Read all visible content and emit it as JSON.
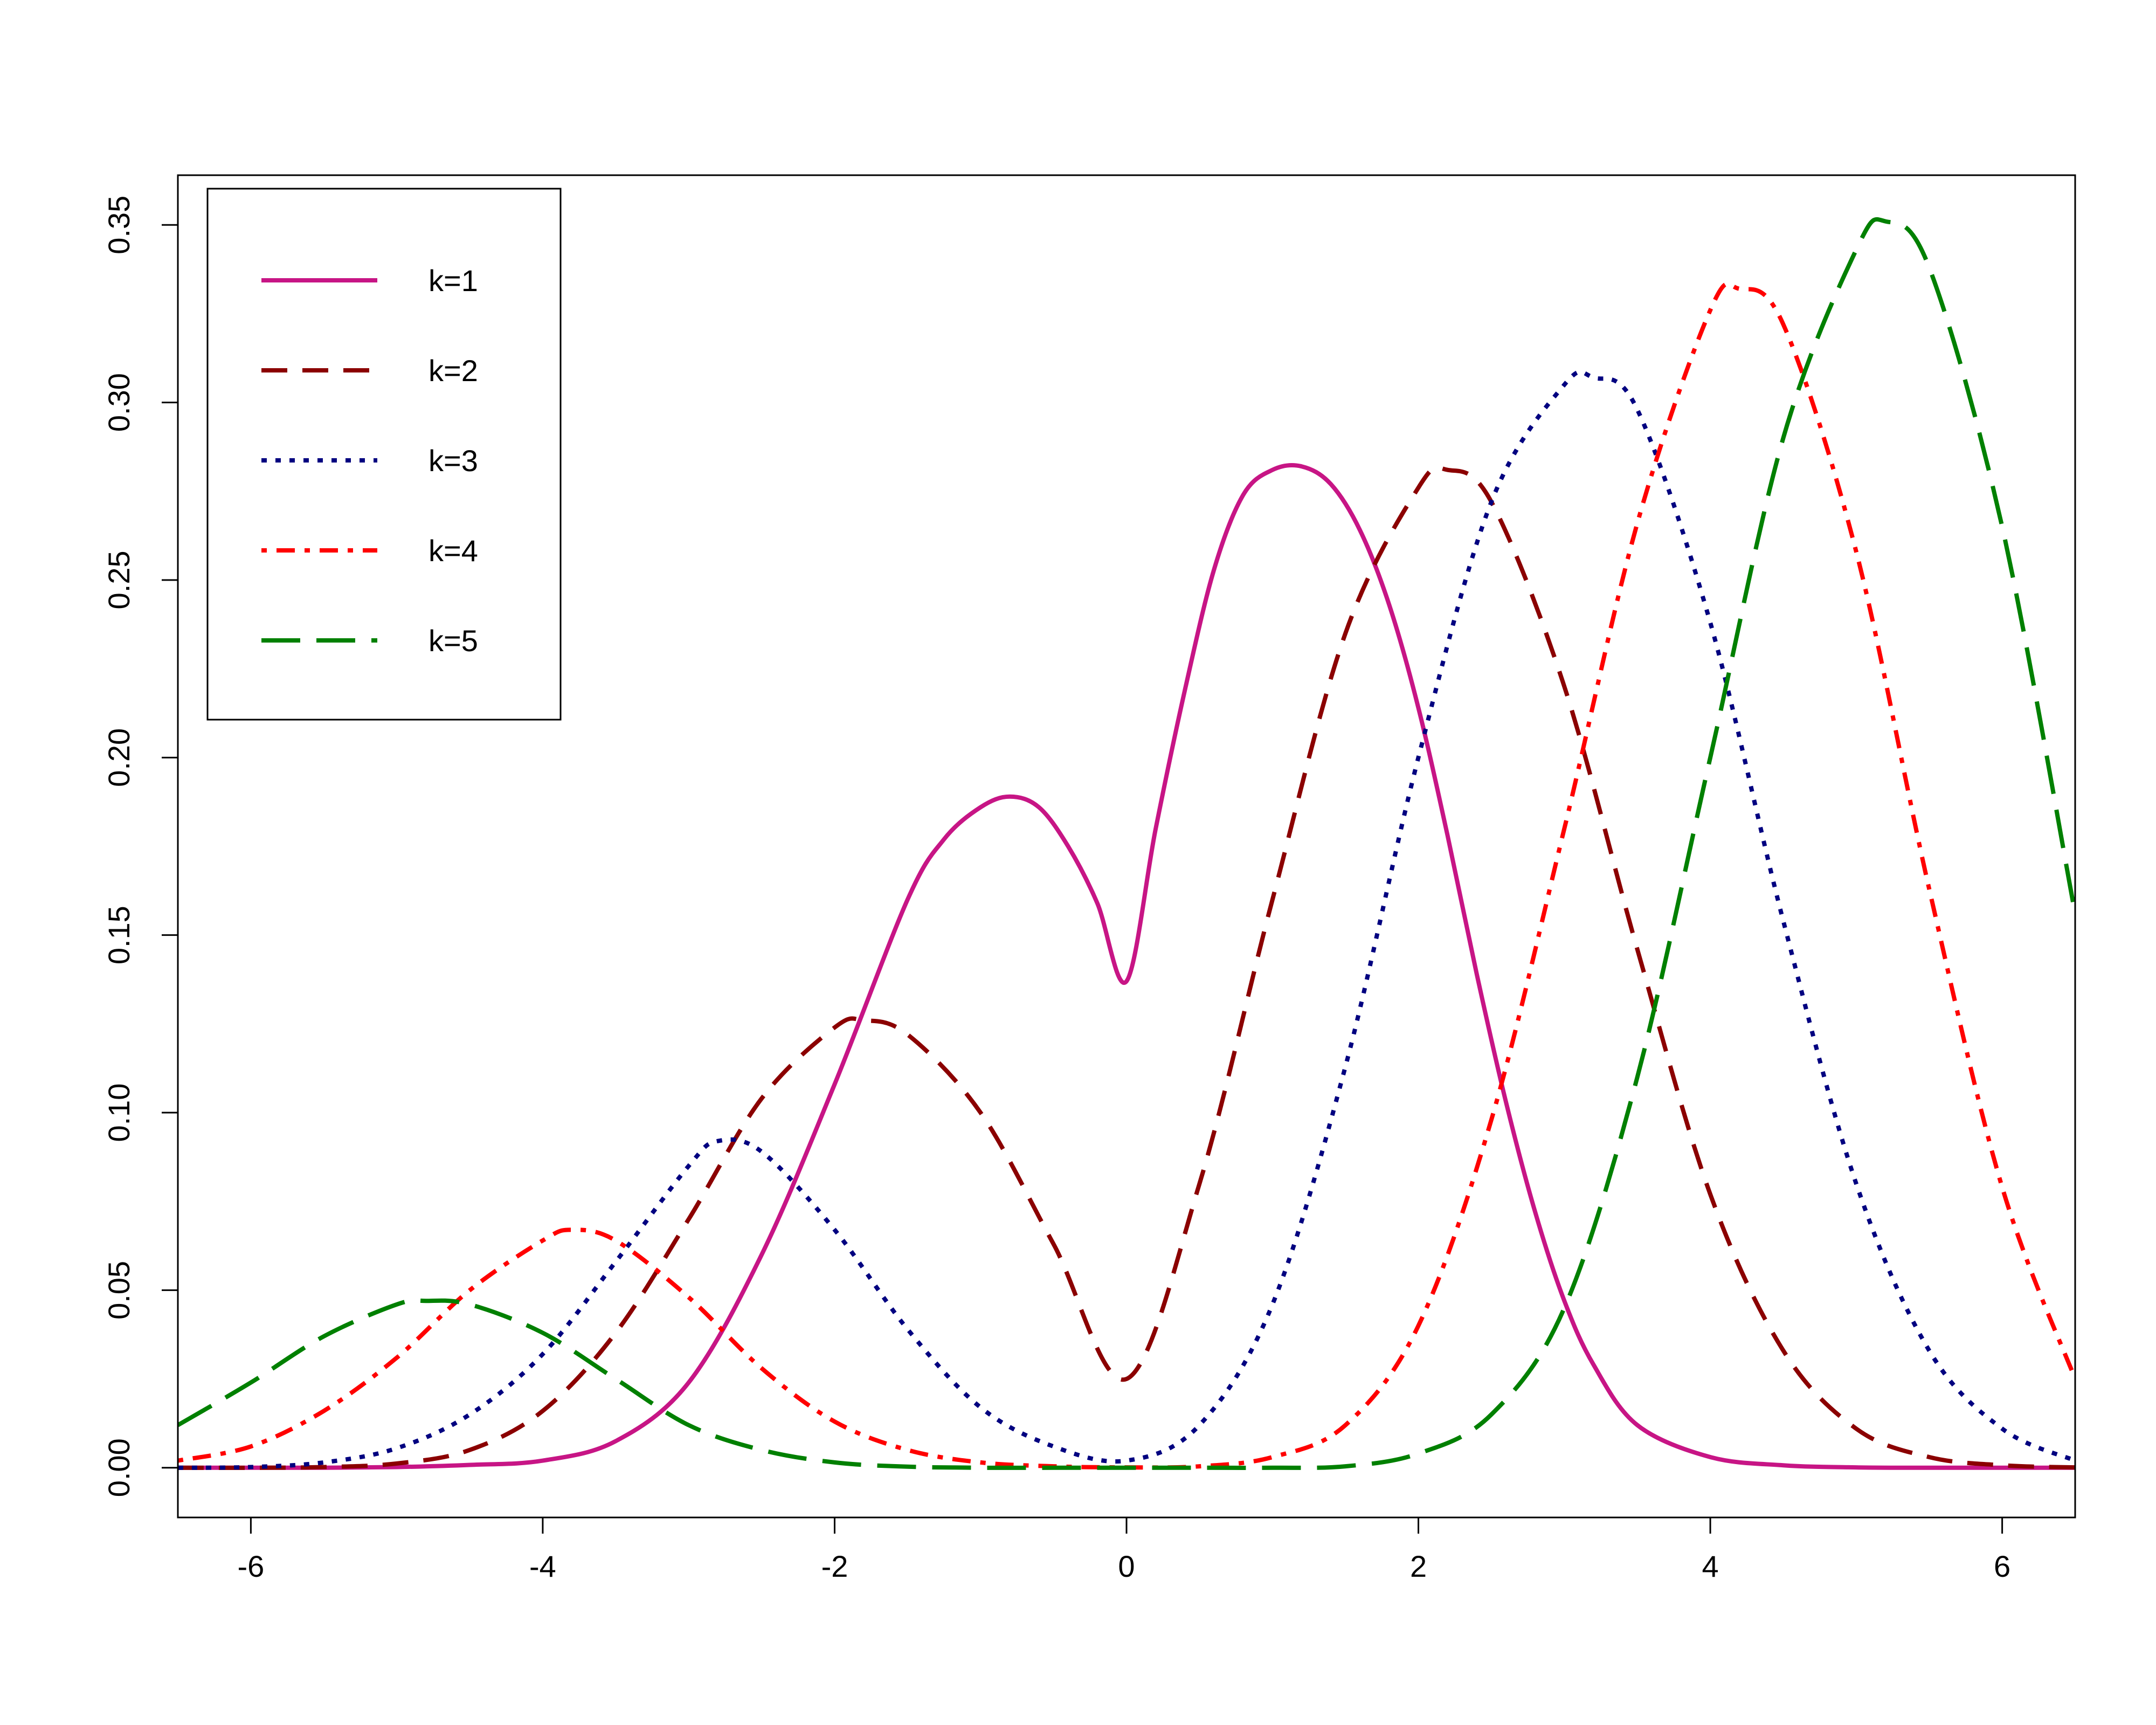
{
  "chart_data": {
    "type": "line",
    "title": "",
    "xlabel": "",
    "ylabel": "",
    "xlim": [
      -6.5,
      6.5
    ],
    "ylim": [
      -0.014,
      0.364
    ],
    "xticks": [
      -6,
      -4,
      -2,
      0,
      2,
      4,
      6
    ],
    "xtick_labels": [
      "-6",
      "-4",
      "-2",
      "0",
      "2",
      "4",
      "6"
    ],
    "yticks": [
      0.0,
      0.05,
      0.1,
      0.15,
      0.2,
      0.25,
      0.3,
      0.35
    ],
    "ytick_labels": [
      "0.00",
      "0.05",
      "0.10",
      "0.15",
      "0.20",
      "0.25",
      "0.30",
      "0.35"
    ],
    "grid": false,
    "legend_position": "top-left",
    "series": [
      {
        "name": "k=1",
        "color": "#C71585",
        "dash": "solid",
        "x": [
          -6.5,
          -6.0,
          -5.5,
          -5.0,
          -4.5,
          -4.0,
          -3.5,
          -3.0,
          -2.5,
          -2.0,
          -1.5,
          -1.25,
          -1.0,
          -0.8,
          -0.6,
          -0.4,
          -0.2,
          0.0,
          0.2,
          0.4,
          0.6,
          0.8,
          1.0,
          1.2,
          1.4,
          1.6,
          1.8,
          2.0,
          2.2,
          2.4,
          2.6,
          2.8,
          3.0,
          3.2,
          3.5,
          4.0,
          4.5,
          5.0,
          5.5,
          6.0,
          6.5
        ],
        "y": [
          0.0,
          0.0,
          0.0,
          0.0002,
          0.0008,
          0.002,
          0.0075,
          0.024,
          0.06,
          0.108,
          0.16,
          0.177,
          0.186,
          0.189,
          0.186,
          0.175,
          0.159,
          0.137,
          0.18,
          0.219,
          0.253,
          0.274,
          0.281,
          0.282,
          0.277,
          0.264,
          0.243,
          0.214,
          0.178,
          0.139,
          0.103,
          0.072,
          0.047,
          0.029,
          0.012,
          0.003,
          0.0007,
          0.0001,
          0.0,
          0.0,
          0.0
        ]
      },
      {
        "name": "k=2",
        "color": "#8B0000",
        "dash": "dashed",
        "x": [
          -6.5,
          -6.0,
          -5.5,
          -5.0,
          -4.5,
          -4.0,
          -3.5,
          -3.0,
          -2.5,
          -2.0,
          -1.8,
          -1.5,
          -1.0,
          -0.5,
          0.0,
          0.5,
          1.0,
          1.5,
          2.0,
          2.2,
          2.5,
          3.0,
          3.5,
          4.0,
          4.5,
          5.0,
          5.5,
          6.0,
          6.5
        ],
        "y": [
          0.0,
          0.0,
          0.0002,
          0.0012,
          0.005,
          0.016,
          0.038,
          0.07,
          0.104,
          0.124,
          0.126,
          0.122,
          0.1,
          0.063,
          0.025,
          0.08,
          0.16,
          0.235,
          0.276,
          0.281,
          0.272,
          0.22,
          0.146,
          0.077,
          0.033,
          0.011,
          0.003,
          0.0007,
          0.0001
        ]
      },
      {
        "name": "k=3",
        "color": "#000080",
        "dash": "dotted",
        "x": [
          -6.5,
          -6.0,
          -5.5,
          -5.0,
          -4.5,
          -4.0,
          -3.5,
          -3.0,
          -2.8,
          -2.5,
          -2.0,
          -1.5,
          -1.0,
          -0.5,
          0.0,
          0.5,
          1.0,
          1.5,
          2.0,
          2.5,
          3.0,
          3.2,
          3.5,
          4.0,
          4.5,
          5.0,
          5.5,
          6.0,
          6.5
        ],
        "y": [
          0.0,
          0.0002,
          0.0015,
          0.0055,
          0.015,
          0.032,
          0.058,
          0.085,
          0.092,
          0.089,
          0.067,
          0.039,
          0.017,
          0.006,
          0.002,
          0.012,
          0.046,
          0.113,
          0.2,
          0.272,
          0.305,
          0.307,
          0.298,
          0.238,
          0.154,
          0.08,
          0.033,
          0.011,
          0.002
        ]
      },
      {
        "name": "k=4",
        "color": "#FF0000",
        "dash": "dotdash",
        "x": [
          -6.5,
          -6.0,
          -5.5,
          -5.0,
          -4.5,
          -4.0,
          -3.8,
          -3.5,
          -3.0,
          -2.5,
          -2.0,
          -1.5,
          -1.0,
          -0.5,
          0.0,
          0.5,
          1.0,
          1.5,
          2.0,
          2.5,
          3.0,
          3.5,
          4.0,
          4.2,
          4.5,
          5.0,
          5.5,
          6.0,
          6.5
        ],
        "y": [
          0.002,
          0.006,
          0.016,
          0.031,
          0.05,
          0.064,
          0.067,
          0.064,
          0.048,
          0.028,
          0.013,
          0.005,
          0.0015,
          0.0004,
          0.0001,
          0.0004,
          0.003,
          0.012,
          0.04,
          0.098,
          0.18,
          0.266,
          0.326,
          0.332,
          0.322,
          0.258,
          0.163,
          0.079,
          0.025
        ]
      },
      {
        "name": "k=5",
        "color": "#008000",
        "dash": "longdash",
        "x": [
          -6.5,
          -6.0,
          -5.5,
          -5.0,
          -4.8,
          -4.5,
          -4.0,
          -3.5,
          -3.0,
          -2.5,
          -2.0,
          -1.5,
          -1.0,
          -0.5,
          0.0,
          0.5,
          1.0,
          1.5,
          2.0,
          2.5,
          3.0,
          3.5,
          4.0,
          4.5,
          5.0,
          5.2,
          5.5,
          6.0,
          6.5
        ],
        "y": [
          0.012,
          0.024,
          0.037,
          0.046,
          0.047,
          0.046,
          0.038,
          0.025,
          0.012,
          0.005,
          0.0015,
          0.0003,
          0.0,
          0.0,
          0.0,
          0.0,
          0.0,
          0.0004,
          0.004,
          0.015,
          0.045,
          0.11,
          0.2,
          0.29,
          0.343,
          0.351,
          0.338,
          0.265,
          0.156
        ]
      }
    ]
  }
}
